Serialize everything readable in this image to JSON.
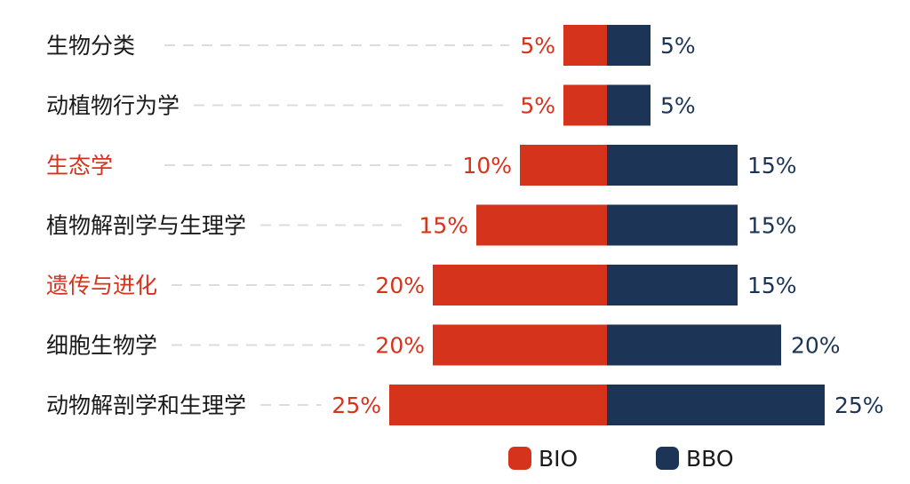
{
  "chart_data": {
    "type": "bar",
    "orientation": "diverging-horizontal",
    "categories": [
      "生物分类",
      "动植物行为学",
      "生态学",
      "植物解剖学与生理学",
      "遗传与进化",
      "细胞生物学",
      "动物解剖学和生理学"
    ],
    "highlighted_categories": [
      "生态学",
      "遗传与进化"
    ],
    "series": [
      {
        "name": "BIO",
        "values": [
          5,
          5,
          10,
          15,
          20,
          20,
          25
        ],
        "labels": [
          "5%",
          "5%",
          "10%",
          "15%",
          "20%",
          "20%",
          "25%"
        ],
        "color": "#d6331d",
        "side": "left"
      },
      {
        "name": "BBO",
        "values": [
          5,
          5,
          15,
          15,
          15,
          20,
          25
        ],
        "labels": [
          "5%",
          "5%",
          "15%",
          "15%",
          "15%",
          "20%",
          "25%"
        ],
        "color": "#1c3556",
        "side": "right"
      }
    ],
    "unit": "%",
    "grid": false,
    "legend_position": "bottom"
  },
  "colors": {
    "category_text": "#1a1a1a",
    "highlight_text": "#d6331d",
    "bio_value_text": "#d6331d",
    "bbo_value_text": "#1c3556",
    "leader_line": "#dcdcdc"
  }
}
